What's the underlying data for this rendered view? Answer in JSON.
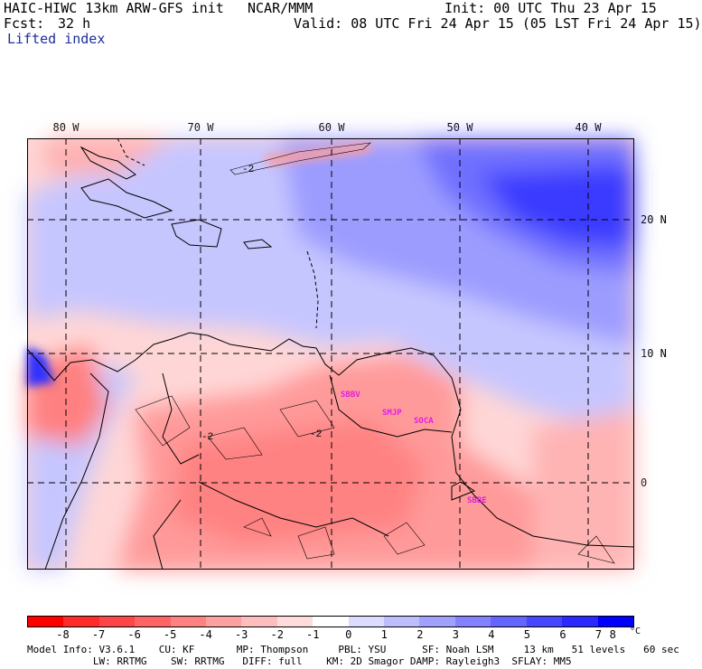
{
  "header": {
    "model": "HAIC-HIWC 13km ARW-GFS init",
    "org": "NCAR/MMM",
    "init": "Init: 00 UTC Thu 23 Apr 15",
    "fcst_label": "Fcst:",
    "fcst_value": "32 h",
    "valid": "Valid: 08 UTC Fri 24 Apr 15 (05 LST Fri 24 Apr 15)",
    "field": "Lifted index"
  },
  "map": {
    "lon_labels": [
      "80 W",
      "70 W",
      "60 W",
      "50 W",
      "40 W"
    ],
    "lat_labels": [
      "20 N",
      "10 N",
      "0"
    ],
    "contour_labels": [
      "-2",
      "-2",
      "-2"
    ],
    "stations": [
      "SBBV",
      "SMJP",
      "SOCA",
      "SBBE"
    ]
  },
  "colorbar": {
    "colors": [
      "#ff0000",
      "#ff2a2a",
      "#ff4646",
      "#ff6464",
      "#ff8282",
      "#ffa0a0",
      "#ffbebe",
      "#ffdcdc",
      "#ffffff",
      "#dcdcff",
      "#bebeff",
      "#a0a0ff",
      "#8282ff",
      "#6464ff",
      "#4646ff",
      "#2a2aff",
      "#0000ff"
    ],
    "labels": [
      "-8",
      "-7",
      "-6",
      "-5",
      "-4",
      "-3",
      "-2",
      "-1",
      "0",
      "1",
      "2",
      "3",
      "4",
      "5",
      "6",
      "7",
      "8"
    ],
    "unit": "°C"
  },
  "footer": {
    "line1": "Model Info: V3.6.1    CU: KF       MP: Thompson     PBL: YSU      SF: Noah LSM     13 km   51 levels   60 sec",
    "line2": "           LW: RRTMG    SW: RRTMG   DIFF: full    KM: 2D Smagor DAMP: Rayleigh3  SFLAY: MM5"
  }
}
